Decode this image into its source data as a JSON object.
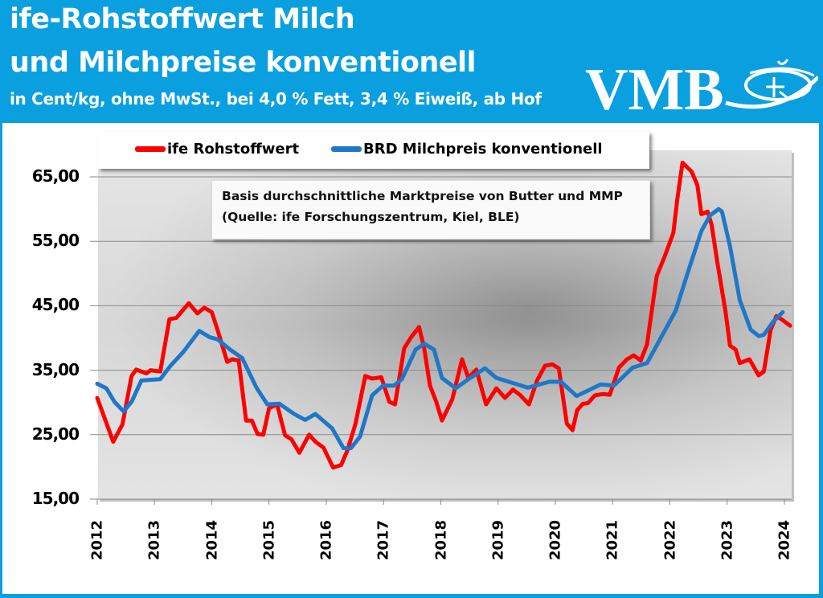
{
  "header": {
    "title_line1": "ife-Rohstoffwert Milch",
    "title_line2": "und Milchpreise konventionell",
    "subtitle": "in Cent/kg, ohne MwSt., bei 4,0 % Fett, 3,4 % Eiweiß, ab Hof",
    "logo_text": "VMB",
    "background_color": "#0aa0e0"
  },
  "chart_data": {
    "type": "line",
    "title": "",
    "xlabel": "",
    "ylabel": "",
    "xlim": [
      2012,
      2024.1
    ],
    "ylim": [
      15,
      68
    ],
    "grid": true,
    "legend_placement": "top",
    "x_ticks": [
      "2012",
      "2013",
      "2014",
      "2015",
      "2016",
      "2017",
      "2018",
      "2019",
      "2020",
      "2021",
      "2022",
      "2023",
      "2024"
    ],
    "y_ticks": [
      "15,00",
      "25,00",
      "35,00",
      "45,00",
      "55,00",
      "65,00"
    ],
    "y_tick_values": [
      15,
      25,
      35,
      45,
      55,
      65
    ],
    "annotation_line1": "Basis durchschnittliche Marktpreise von Butter und MMP",
    "annotation_line2": "(Quelle: ife Forschungszentrum, Kiel, BLE)",
    "series": [
      {
        "name": "ife Rohstoffwert",
        "color": "#ff0000",
        "x": [
          2012.0,
          2012.28,
          2012.44,
          2012.6,
          2012.68,
          2012.86,
          2012.93,
          2013.1,
          2013.26,
          2013.38,
          2013.6,
          2013.75,
          2013.87,
          2014.0,
          2014.1,
          2014.27,
          2014.36,
          2014.47,
          2014.6,
          2014.7,
          2014.8,
          2014.9,
          2015.0,
          2015.14,
          2015.28,
          2015.39,
          2015.53,
          2015.7,
          2015.81,
          2015.95,
          2016.12,
          2016.26,
          2016.37,
          2016.51,
          2016.68,
          2016.8,
          2016.96,
          2017.1,
          2017.2,
          2017.36,
          2017.48,
          2017.62,
          2017.71,
          2017.81,
          2017.92,
          2018.02,
          2018.2,
          2018.37,
          2018.48,
          2018.62,
          2018.79,
          2018.97,
          2019.12,
          2019.26,
          2019.38,
          2019.54,
          2019.68,
          2019.82,
          2019.95,
          2020.06,
          2020.2,
          2020.3,
          2020.38,
          2020.48,
          2020.57,
          2020.69,
          2020.83,
          2020.95,
          2021.11,
          2021.25,
          2021.37,
          2021.49,
          2021.6,
          2021.77,
          2021.92,
          2022.06,
          2022.13,
          2022.22,
          2022.38,
          2022.48,
          2022.55,
          2022.66,
          2022.73,
          2022.83,
          2022.97,
          2023.05,
          2023.15,
          2023.22,
          2023.39,
          2023.55,
          2023.64,
          2023.76,
          2023.86,
          2023.95,
          2024.1
        ],
        "y": [
          30.7,
          23.9,
          26.6,
          34.1,
          35.1,
          34.5,
          35.0,
          34.8,
          42.9,
          43.1,
          45.4,
          43.8,
          44.7,
          44.0,
          41.3,
          36.3,
          36.7,
          36.5,
          27.2,
          27.2,
          25.1,
          25.0,
          29.1,
          29.7,
          24.9,
          24.3,
          22.2,
          25.0,
          23.9,
          23.0,
          19.9,
          20.3,
          22.6,
          26.7,
          34.1,
          33.7,
          33.9,
          30.1,
          29.7,
          38.4,
          40.1,
          41.7,
          38.4,
          32.6,
          30.1,
          27.2,
          30.5,
          36.7,
          33.8,
          35.1,
          29.7,
          32.2,
          30.7,
          32.0,
          31.2,
          29.7,
          33.4,
          35.7,
          35.9,
          35.3,
          26.7,
          25.7,
          28.8,
          29.8,
          29.9,
          31.1,
          31.3,
          31.2,
          35.4,
          36.7,
          37.3,
          36.5,
          39.0,
          49.6,
          52.9,
          56.3,
          61.6,
          67.2,
          65.8,
          63.7,
          59.2,
          59.6,
          57.5,
          51.7,
          44.2,
          38.8,
          38.2,
          36.1,
          36.7,
          34.2,
          34.8,
          41.3,
          43.4,
          42.9,
          41.9
        ]
      },
      {
        "name": "BRD Milchpreis konventionell",
        "color": "#1f77c8",
        "x": [
          2012.0,
          2012.16,
          2012.3,
          2012.46,
          2012.6,
          2012.77,
          2013.1,
          2013.28,
          2013.5,
          2013.78,
          2013.97,
          2014.1,
          2014.32,
          2014.53,
          2014.78,
          2014.97,
          2015.18,
          2015.44,
          2015.63,
          2015.81,
          2016.1,
          2016.3,
          2016.43,
          2016.59,
          2016.8,
          2016.99,
          2017.18,
          2017.32,
          2017.56,
          2017.71,
          2017.88,
          2018.02,
          2018.26,
          2018.48,
          2018.77,
          2018.97,
          2019.52,
          2019.89,
          2020.1,
          2020.37,
          2020.79,
          2021.02,
          2021.35,
          2021.6,
          2021.86,
          2022.1,
          2022.34,
          2022.55,
          2022.7,
          2022.85,
          2022.91,
          2023.05,
          2023.22,
          2023.41,
          2023.55,
          2023.64,
          2023.81,
          2023.97
        ],
        "y": [
          32.9,
          32.2,
          30.1,
          28.6,
          30.1,
          33.4,
          33.6,
          35.7,
          37.8,
          41.1,
          40.1,
          39.8,
          38.2,
          36.9,
          32.3,
          29.7,
          29.8,
          28.2,
          27.3,
          28.2,
          26.0,
          22.9,
          22.9,
          24.7,
          31.1,
          32.6,
          32.6,
          33.6,
          38.2,
          39.1,
          38.2,
          33.8,
          32.2,
          33.6,
          35.3,
          33.8,
          32.3,
          33.2,
          33.2,
          31.0,
          32.8,
          32.6,
          35.4,
          36.1,
          40.3,
          44.2,
          50.9,
          56.6,
          59.0,
          60.0,
          59.6,
          54.2,
          45.9,
          41.3,
          40.3,
          40.5,
          42.6,
          44.0
        ]
      }
    ]
  }
}
